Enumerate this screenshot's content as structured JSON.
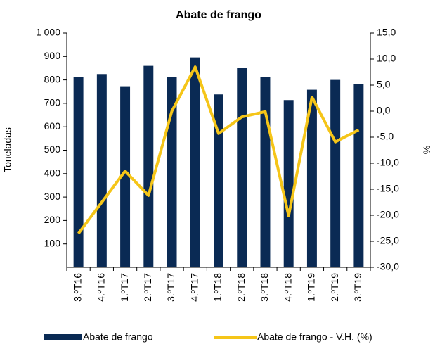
{
  "chart_data": {
    "type": "bar_line",
    "title": "Abate de frango",
    "ylabel": "Toneladas",
    "y2label": "%",
    "categories": [
      "3.ºT16",
      "4.ºT16",
      "1.ºT17",
      "2.ºT17",
      "3.ºT17",
      "4.ºT17",
      "1.ºT18",
      "2.ºT18",
      "3.ºT18",
      "4.ºT18",
      "1.ºT19",
      "2.ºT19",
      "3.ºT19"
    ],
    "series": [
      {
        "name": "Abate de frango",
        "type": "bar",
        "color": "#0a2a54",
        "values": [
          812,
          825,
          773,
          860,
          813,
          896,
          738,
          852,
          812,
          714,
          758,
          800,
          781
        ]
      },
      {
        "name": "Abate de frango - V.H. (%)",
        "type": "line",
        "axis": "y2",
        "color": "#f5c518",
        "values": [
          -23.5,
          -17.5,
          -11.5,
          -16.2,
          0.0,
          8.5,
          -4.3,
          -1.1,
          -0.1,
          -20.1,
          2.7,
          -5.9,
          -3.6
        ]
      }
    ],
    "ylim": [
      0,
      1000
    ],
    "yticks": [
      100,
      200,
      300,
      400,
      500,
      600,
      700,
      800,
      900,
      {
        "value": 1000,
        "label": "1 000"
      }
    ],
    "y2lim": [
      -30,
      15
    ],
    "y2ticks": [
      {
        "value": 15,
        "label": "15,0"
      },
      {
        "value": 10,
        "label": "10,0"
      },
      {
        "value": 5,
        "label": "5,0"
      },
      {
        "value": 0,
        "label": "0,0"
      },
      {
        "value": -5,
        "label": "-5,0"
      },
      {
        "value": -10,
        "label": "-10,0"
      },
      {
        "value": -15,
        "label": "-15,0"
      },
      {
        "value": -20,
        "label": "-20,0"
      },
      {
        "value": -25,
        "label": "-25,0"
      },
      {
        "value": -30,
        "label": "-30,0"
      }
    ],
    "legend": "bottom"
  }
}
